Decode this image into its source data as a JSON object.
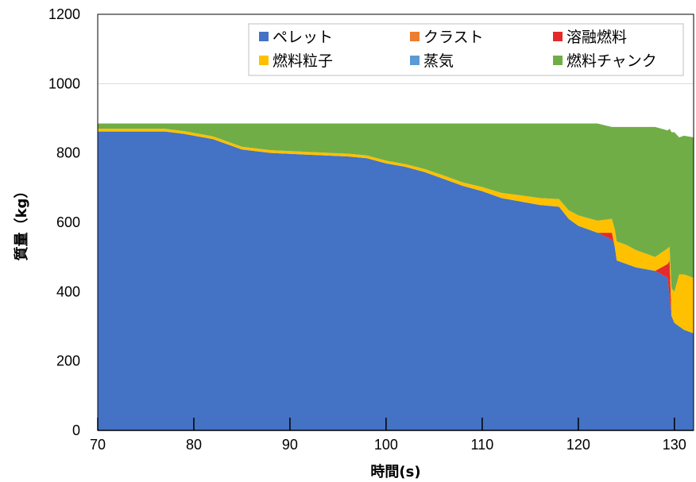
{
  "chart_data": {
    "type": "area",
    "stacked": true,
    "xlabel": "時間(s)",
    "ylabel": "質量（kg）",
    "xlim": [
      70,
      132
    ],
    "ylim": [
      0,
      1200
    ],
    "xticks": [
      70,
      80,
      90,
      100,
      110,
      120,
      130
    ],
    "yticks": [
      0,
      200,
      400,
      600,
      800,
      1000,
      1200
    ],
    "grid": "horizontal",
    "legend_position": "top-right",
    "legend_order": [
      "ペレット",
      "クラスト",
      "溶融燃料",
      "燃料粒子",
      "蒸気",
      "燃料チャンク"
    ],
    "x": [
      70,
      77,
      79,
      82,
      85,
      88,
      92,
      96,
      98,
      100,
      102,
      104,
      106,
      108,
      110,
      112,
      114,
      116,
      118,
      119,
      120,
      122,
      123.5,
      123.8,
      124,
      125,
      126,
      128,
      129.3,
      129.5,
      129.7,
      130,
      130.5,
      131,
      132
    ],
    "series": [
      {
        "name": "ペレット",
        "color": "#4472c4",
        "values": [
          862,
          862,
          855,
          840,
          810,
          800,
          795,
          790,
          785,
          770,
          760,
          745,
          725,
          705,
          690,
          670,
          660,
          650,
          645,
          610,
          590,
          570,
          550,
          530,
          490,
          480,
          470,
          460,
          440,
          380,
          330,
          310,
          300,
          290,
          280
        ]
      },
      {
        "name": "クラスト",
        "color": "#ed7d31",
        "values": [
          0,
          0,
          0,
          0,
          0,
          0,
          0,
          0,
          0,
          0,
          0,
          0,
          0,
          0,
          0,
          0,
          0,
          0,
          0,
          0,
          0,
          0,
          0,
          0,
          0,
          0,
          0,
          0,
          0,
          0,
          0,
          0,
          0,
          0,
          0
        ]
      },
      {
        "name": "溶融燃料",
        "color": "#e42b2b",
        "values": [
          0,
          0,
          0,
          0,
          0,
          0,
          0,
          0,
          0,
          0,
          0,
          0,
          0,
          0,
          0,
          0,
          0,
          0,
          0,
          0,
          0,
          0,
          20,
          0,
          0,
          0,
          0,
          0,
          40,
          110,
          0,
          0,
          0,
          0,
          0
        ]
      },
      {
        "name": "燃料粒子",
        "color": "#ffc000",
        "values": [
          8,
          8,
          8,
          8,
          8,
          8,
          8,
          8,
          8,
          8,
          8,
          9,
          10,
          10,
          12,
          15,
          18,
          20,
          22,
          25,
          30,
          35,
          40,
          50,
          55,
          55,
          50,
          40,
          45,
          40,
          80,
          90,
          150,
          160,
          160
        ]
      },
      {
        "name": "蒸気",
        "color": "#5b9bd5",
        "values": [
          0,
          0,
          0,
          0,
          0,
          0,
          0,
          0,
          0,
          0,
          0,
          0,
          0,
          0,
          0,
          0,
          0,
          0,
          0,
          0,
          0,
          0,
          0,
          0,
          0,
          0,
          0,
          0,
          0,
          0,
          0,
          0,
          0,
          0,
          0
        ]
      },
      {
        "name": "燃料チャンク",
        "color": "#70ad47",
        "values": [
          15,
          15,
          22,
          37,
          67,
          77,
          82,
          87,
          92,
          107,
          117,
          131,
          150,
          170,
          183,
          200,
          207,
          215,
          218,
          250,
          265,
          280,
          265,
          295,
          330,
          340,
          355,
          375,
          340,
          340,
          450,
          460,
          395,
          400,
          405
        ]
      }
    ]
  }
}
